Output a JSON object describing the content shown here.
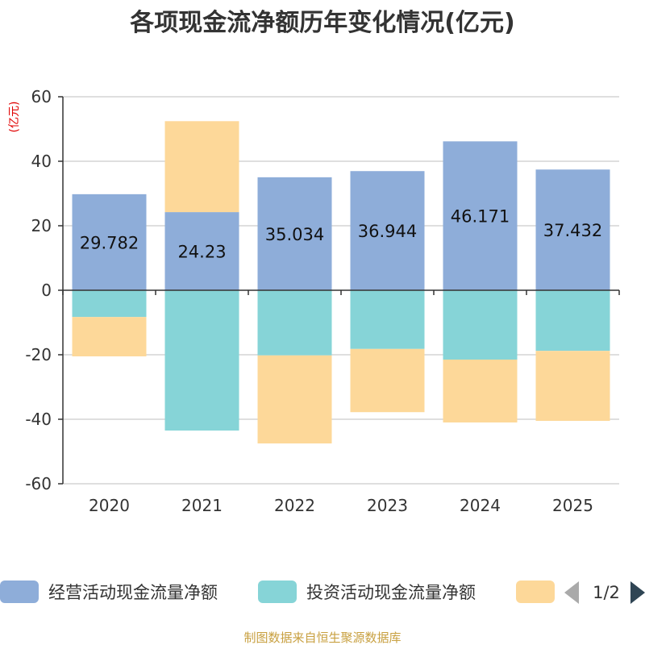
{
  "chart_data": {
    "type": "bar",
    "stacked": true,
    "title": "各项现金流净额历年变化情况(亿元)",
    "ylabel": "(亿元)",
    "ylim": [
      -60,
      60
    ],
    "yticks": [
      60,
      40,
      20,
      0,
      -20,
      -40,
      -60
    ],
    "categories": [
      "2020",
      "2021",
      "2022",
      "2023",
      "2024",
      "2025"
    ],
    "series": [
      {
        "name": "经营活动现金流量净额",
        "color": "#8eadd9",
        "values": [
          29.782,
          24.23,
          35.034,
          36.944,
          46.171,
          37.432
        ],
        "labels": [
          "29.782",
          "24.23",
          "35.034",
          "36.944",
          "46.171",
          "37.432"
        ]
      },
      {
        "name": "投资活动现金流量净额",
        "color": "#86d4d7",
        "values": [
          -8.3,
          -43.5,
          -20.2,
          -18.2,
          -21.5,
          -18.8
        ]
      },
      {
        "name": "",
        "color": "#fdd899",
        "values": [
          -12.2,
          28.2,
          -27.3,
          -19.6,
          -19.5,
          -21.7
        ]
      }
    ],
    "legend_position": "bottom",
    "legend_page": "1/2"
  },
  "footer": {
    "source": "制图数据来自恒生聚源数据库"
  },
  "colors": {
    "axis": "#333333",
    "grid": "#cccccc",
    "pager_active": "#2f4554",
    "pager_inactive": "#aaaaaa"
  }
}
